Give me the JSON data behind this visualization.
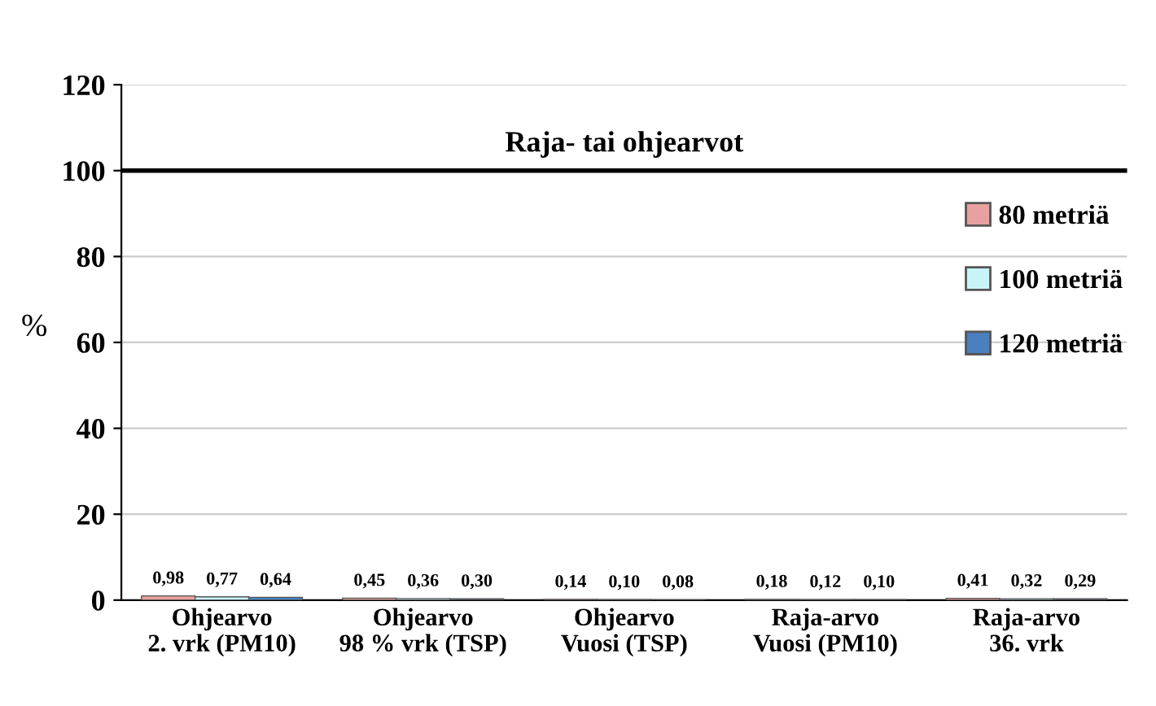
{
  "chart_data": {
    "type": "bar",
    "ylabel": "%",
    "categories": [
      "Ohjearvo\n2. vrk (PM10)",
      "Ohjearvo\n98 % vrk (TSP)",
      "Ohjearvo\nVuosi (TSP)",
      "Raja-arvo\nVuosi (PM10)",
      "Raja-arvo\n36. vrk"
    ],
    "series": [
      {
        "name": "80 metriä",
        "color": "#e8a0a0",
        "values": [
          0.98,
          0.45,
          0.14,
          0.18,
          0.41
        ],
        "value_labels": [
          "0,98",
          "0,45",
          "0,14",
          "0,18",
          "0,41"
        ]
      },
      {
        "name": "100 metriä",
        "color": "#c8f4f8",
        "values": [
          0.77,
          0.36,
          0.1,
          0.12,
          0.32
        ],
        "value_labels": [
          "0,77",
          "0,36",
          "0,10",
          "0,12",
          "0,32"
        ]
      },
      {
        "name": "120 metriä",
        "color": "#4a7fc0",
        "values": [
          0.64,
          0.3,
          0.08,
          0.1,
          0.29
        ],
        "value_labels": [
          "0,64",
          "0,30",
          "0,08",
          "0,10",
          "0,29"
        ]
      }
    ],
    "ylim": [
      0,
      120
    ],
    "yticks": [
      0,
      20,
      40,
      60,
      80,
      100,
      120
    ],
    "grid": "y",
    "legend": "right",
    "ref_lines": [
      {
        "axis": "y",
        "value": 100,
        "label": "Raja- tai ohjearvot",
        "color": "#000000"
      }
    ]
  }
}
